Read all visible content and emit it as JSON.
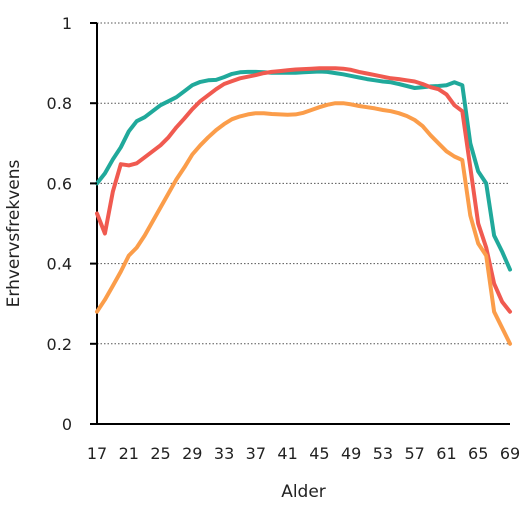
{
  "chart_data": {
    "type": "line",
    "title": "",
    "xlabel": "Alder",
    "ylabel": "Erhvervsfrekvens",
    "xlim": [
      17,
      69
    ],
    "ylim": [
      0,
      1
    ],
    "grid": true,
    "grid_style": "dotted horizontal",
    "legend": "none",
    "x_ticks": [
      "17",
      "21",
      "25",
      "29",
      "33",
      "37",
      "41",
      "45",
      "49",
      "53",
      "57",
      "61",
      "65",
      "69"
    ],
    "y_ticks": [
      "0",
      "0.2",
      "0.4",
      "0.6",
      "0.8",
      "1"
    ],
    "x": [
      17,
      18,
      19,
      20,
      21,
      22,
      23,
      24,
      25,
      26,
      27,
      28,
      29,
      30,
      31,
      32,
      33,
      34,
      35,
      36,
      37,
      38,
      39,
      40,
      41,
      42,
      43,
      44,
      45,
      46,
      47,
      48,
      49,
      50,
      51,
      52,
      53,
      54,
      55,
      56,
      57,
      58,
      59,
      60,
      61,
      62,
      63,
      64,
      65,
      66,
      67,
      68,
      69
    ],
    "series": [
      {
        "color": "#20a99b",
        "values": [
          0.6,
          0.625,
          0.66,
          0.69,
          0.73,
          0.755,
          0.765,
          0.78,
          0.795,
          0.805,
          0.815,
          0.83,
          0.845,
          0.853,
          0.857,
          0.858,
          0.865,
          0.873,
          0.877,
          0.878,
          0.878,
          0.877,
          0.876,
          0.876,
          0.876,
          0.876,
          0.877,
          0.878,
          0.879,
          0.878,
          0.875,
          0.872,
          0.868,
          0.864,
          0.86,
          0.857,
          0.854,
          0.852,
          0.848,
          0.843,
          0.838,
          0.84,
          0.842,
          0.843,
          0.845,
          0.852,
          0.845,
          0.7,
          0.63,
          0.6,
          0.47,
          0.43,
          0.385
        ]
      },
      {
        "color": "#f05a50",
        "values": [
          0.525,
          0.475,
          0.58,
          0.648,
          0.645,
          0.65,
          0.665,
          0.68,
          0.695,
          0.715,
          0.74,
          0.762,
          0.785,
          0.805,
          0.82,
          0.835,
          0.848,
          0.855,
          0.862,
          0.866,
          0.87,
          0.875,
          0.878,
          0.88,
          0.882,
          0.884,
          0.885,
          0.886,
          0.887,
          0.887,
          0.887,
          0.886,
          0.883,
          0.878,
          0.874,
          0.87,
          0.866,
          0.862,
          0.86,
          0.857,
          0.854,
          0.848,
          0.84,
          0.835,
          0.822,
          0.795,
          0.78,
          0.64,
          0.5,
          0.44,
          0.35,
          0.305,
          0.28
        ]
      },
      {
        "color": "#fb9d4a",
        "values": [
          0.28,
          0.31,
          0.345,
          0.38,
          0.42,
          0.44,
          0.47,
          0.505,
          0.54,
          0.575,
          0.61,
          0.64,
          0.672,
          0.695,
          0.715,
          0.733,
          0.748,
          0.76,
          0.767,
          0.772,
          0.775,
          0.775,
          0.773,
          0.772,
          0.771,
          0.772,
          0.776,
          0.783,
          0.79,
          0.796,
          0.8,
          0.8,
          0.797,
          0.793,
          0.79,
          0.787,
          0.783,
          0.78,
          0.775,
          0.768,
          0.758,
          0.743,
          0.72,
          0.7,
          0.68,
          0.667,
          0.658,
          0.52,
          0.45,
          0.42,
          0.28,
          0.24,
          0.2
        ]
      }
    ]
  }
}
